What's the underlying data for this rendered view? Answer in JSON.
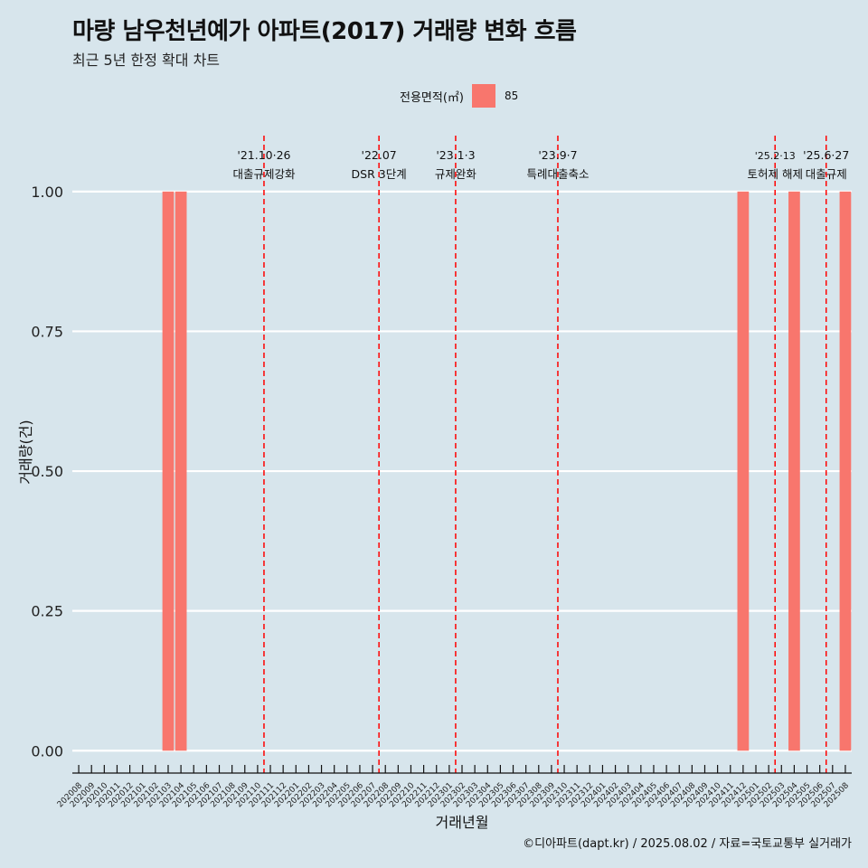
{
  "header": {
    "title": "마량 남우천년예가 아파트(2017) 거래량 변화 흐름",
    "subtitle": "최근 5년 한정 확대 차트"
  },
  "footer": {
    "caption": "©디아파트(dapt.kr) / 2025.08.02 / 자료=국토교통부 실거래가"
  },
  "chart_data": {
    "type": "bar",
    "xlabel": "거래년월",
    "ylabel": "거래량(건)",
    "ylim": [
      -0.04,
      1.1
    ],
    "yticks": [
      "0.00",
      "0.25",
      "0.50",
      "0.75",
      "1.00"
    ],
    "ytick_values": [
      0,
      0.25,
      0.5,
      0.75,
      1.0
    ],
    "legend": {
      "title": "전용면적(㎡)",
      "position": "top",
      "entries": [
        "85"
      ]
    },
    "categories": [
      "202008",
      "202009",
      "202010",
      "202011",
      "202012",
      "202101",
      "202102",
      "202103",
      "202104",
      "202105",
      "202106",
      "202107",
      "202108",
      "202109",
      "202110",
      "202111",
      "202112",
      "202201",
      "202202",
      "202203",
      "202204",
      "202205",
      "202206",
      "202207",
      "202208",
      "202209",
      "202210",
      "202211",
      "202212",
      "202301",
      "202302",
      "202303",
      "202304",
      "202305",
      "202306",
      "202307",
      "202308",
      "202309",
      "202310",
      "202311",
      "202312",
      "202401",
      "202402",
      "202403",
      "202404",
      "202405",
      "202406",
      "202407",
      "202408",
      "202409",
      "202410",
      "202411",
      "202412",
      "202501",
      "202502",
      "202503",
      "202504",
      "202505",
      "202506",
      "202507",
      "202508"
    ],
    "series": [
      {
        "name": "85",
        "color": "#f8766d",
        "values": [
          0,
          0,
          0,
          0,
          0,
          0,
          0,
          1,
          1,
          0,
          0,
          0,
          0,
          0,
          0,
          0,
          0,
          0,
          0,
          0,
          0,
          0,
          0,
          0,
          0,
          0,
          0,
          0,
          0,
          0,
          0,
          0,
          0,
          0,
          0,
          0,
          0,
          0,
          0,
          0,
          0,
          0,
          0,
          0,
          0,
          0,
          0,
          0,
          0,
          0,
          0,
          0,
          1,
          0,
          0,
          0,
          1,
          0,
          0,
          0,
          1
        ]
      }
    ],
    "annotations": [
      {
        "index": 14.5,
        "date": "'21.10·26",
        "label": "대출규제강화"
      },
      {
        "index": 23.5,
        "date": "'22.07",
        "label": "DSR 3단계"
      },
      {
        "index": 29.5,
        "date": "'23.1·3",
        "label": "규제완화"
      },
      {
        "index": 37.5,
        "date": "'23.9·7",
        "label": "특례대출축소"
      },
      {
        "index": 54.5,
        "date": "'25.2·13",
        "label": "토허제 해제"
      },
      {
        "index": 58.5,
        "date": "'25.6·27",
        "label": "대출규제"
      }
    ],
    "grid": true,
    "line_color": "#ff0000"
  }
}
